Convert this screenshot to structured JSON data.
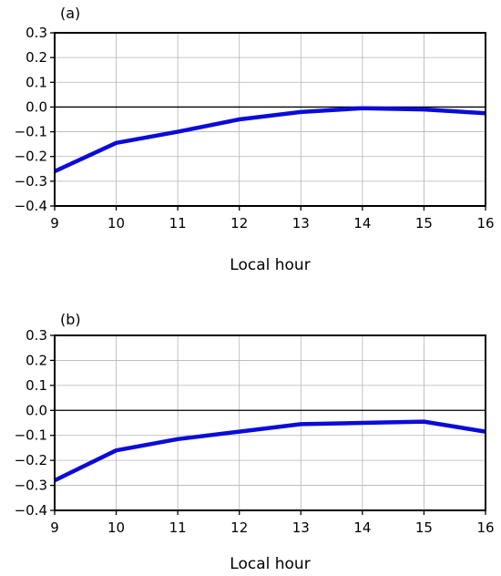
{
  "chart_data": [
    {
      "type": "line",
      "panel_label": "(a)",
      "xlabel": "Local hour",
      "ylabel": "",
      "x": [
        9,
        10,
        11,
        12,
        13,
        14,
        15,
        16
      ],
      "x_tick_labels": [
        "9",
        "10",
        "11",
        "12",
        "13",
        "14",
        "15",
        "16"
      ],
      "y_tick_labels": [
        "0.3",
        "0.2",
        "0.1",
        "0.0",
        "−0.1",
        "−0.2",
        "−0.3",
        "−0.4"
      ],
      "y_ticks": [
        0.3,
        0.2,
        0.1,
        0.0,
        -0.1,
        -0.2,
        -0.3,
        -0.4
      ],
      "xlim": [
        9,
        16
      ],
      "ylim": [
        -0.4,
        0.3
      ],
      "grid": true,
      "zero_line": true,
      "series": [
        {
          "color": "#0b0bd9",
          "values": [
            -0.26,
            -0.145,
            -0.1,
            -0.05,
            -0.02,
            -0.005,
            -0.01,
            -0.025
          ]
        }
      ]
    },
    {
      "type": "line",
      "panel_label": "(b)",
      "xlabel": "Local hour",
      "ylabel": "",
      "x": [
        9,
        10,
        11,
        12,
        13,
        14,
        15,
        16
      ],
      "x_tick_labels": [
        "9",
        "10",
        "11",
        "12",
        "13",
        "14",
        "15",
        "16"
      ],
      "y_tick_labels": [
        "0.3",
        "0.2",
        "0.1",
        "0.0",
        "−0.1",
        "−0.2",
        "−0.3",
        "−0.4"
      ],
      "y_ticks": [
        0.3,
        0.2,
        0.1,
        0.0,
        -0.1,
        -0.2,
        -0.3,
        -0.4
      ],
      "xlim": [
        9,
        16
      ],
      "ylim": [
        -0.4,
        0.3
      ],
      "grid": true,
      "zero_line": true,
      "series": [
        {
          "color": "#0b0bd9",
          "values": [
            -0.28,
            -0.16,
            -0.115,
            -0.085,
            -0.055,
            -0.05,
            -0.045,
            -0.085
          ]
        }
      ]
    }
  ]
}
